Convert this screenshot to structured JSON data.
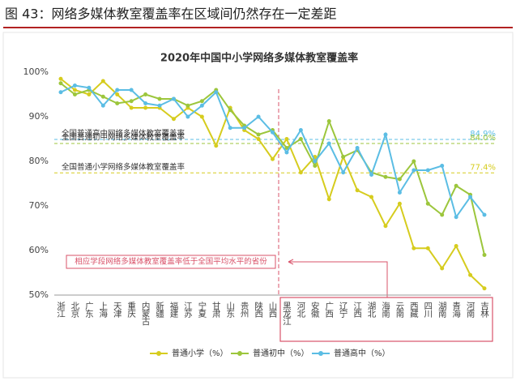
{
  "header": {
    "title": "图 43：网络多媒体教室覆盖率在区域间仍然存在一定差距"
  },
  "chart_data": {
    "type": "line",
    "title": "2020年中国中小学网络多媒体教室覆盖率",
    "categories": [
      "浙江",
      "北京",
      "广东",
      "上海",
      "天津",
      "重庆",
      "内蒙古",
      "新疆",
      "福建",
      "江苏",
      "宁夏",
      "甘肃",
      "山东",
      "贵州",
      "陕西",
      "山西",
      "黑龙江",
      "河北",
      "安徽",
      "广西",
      "辽宁",
      "江西",
      "湖北",
      "海南",
      "云南",
      "西藏",
      "四川",
      "湖南",
      "青海",
      "河南",
      "吉林"
    ],
    "series": [
      {
        "name": "普通小学（%）",
        "color": "#d6cc1e",
        "values": [
          98.5,
          96,
          95,
          98,
          95,
          92,
          92,
          92,
          89.5,
          92,
          90,
          83.5,
          92,
          87,
          85,
          80.5,
          85,
          77.5,
          81,
          71.5,
          81,
          73.5,
          72,
          65.5,
          70.5,
          60.5,
          60.5,
          56,
          61,
          54.5,
          51.5
        ]
      },
      {
        "name": "普通初中（%）",
        "color": "#9cc63c",
        "values": [
          97.5,
          95,
          96,
          94.5,
          93,
          93.5,
          95,
          94,
          94,
          92.5,
          93.5,
          96,
          91.5,
          88,
          86,
          87,
          83,
          85,
          79,
          89,
          81,
          82.5,
          77.5,
          76.5,
          76,
          80,
          70.5,
          68,
          74.5,
          72.5,
          59
        ]
      },
      {
        "name": "普通高中（%）",
        "color": "#5bbde4",
        "values": [
          95.5,
          97,
          96.5,
          92.5,
          96,
          96,
          93,
          92.5,
          94,
          90,
          92.5,
          95.5,
          87.5,
          87.5,
          90,
          86.5,
          82,
          87,
          80,
          84,
          77.5,
          83,
          77,
          86,
          73,
          78,
          78,
          79,
          67.5,
          72,
          68
        ]
      }
    ],
    "reference_lines": [
      {
        "label": "全国普通高中网络多媒体教室覆盖率",
        "value": 84.9,
        "value_label": "84.9%",
        "color": "#5bbde4"
      },
      {
        "label": "全国普通初中网络多媒体教室覆盖率",
        "value": 84.0,
        "value_label": "84.0%",
        "color": "#9cc63c"
      },
      {
        "label": "全国普通小学网络多媒体教室覆盖率",
        "value": 77.4,
        "value_label": "77.4%",
        "color": "#d6cc1e"
      }
    ],
    "annotation": "相应学段网络多媒体教室覆盖率低于全国平均水平的省份",
    "ylim": [
      50,
      100
    ],
    "yticks": [
      {
        "value": 50,
        "label": "50%"
      },
      {
        "value": 60,
        "label": "60%"
      },
      {
        "value": 70,
        "label": "70%"
      },
      {
        "value": 80,
        "label": "80%"
      },
      {
        "value": 90,
        "label": "90%"
      },
      {
        "value": 100,
        "label": "100%"
      }
    ],
    "grid": false
  }
}
